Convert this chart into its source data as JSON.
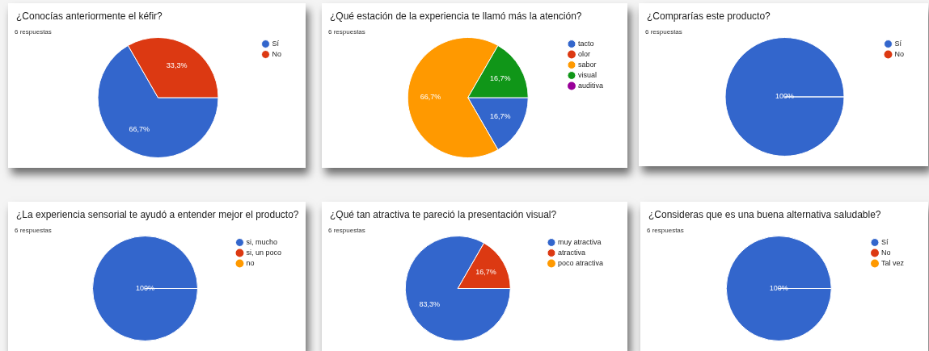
{
  "chart_data": [
    {
      "type": "pie",
      "title": "¿Conocías anteriormente el kéfir?",
      "subtitle": "6 respuestas",
      "categories": [
        "Sí",
        "No"
      ],
      "values": [
        66.7,
        33.3
      ],
      "colors": [
        "#3366cc",
        "#dc3912"
      ],
      "value_labels": [
        "66,7%",
        "33,3%"
      ],
      "legend": "right"
    },
    {
      "type": "pie",
      "title": "¿Qué estación de la experiencia te llamó más la atención?",
      "subtitle": "6 respuestas",
      "categories": [
        "tacto",
        "olor",
        "sabor",
        "visual",
        "auditiva"
      ],
      "values": [
        16.7,
        0,
        66.7,
        16.7,
        0
      ],
      "colors": [
        "#3366cc",
        "#dc3912",
        "#ff9900",
        "#109618",
        "#990099"
      ],
      "value_labels": [
        "16,7%",
        null,
        "66,7%",
        "16,7%",
        null
      ],
      "legend": "right"
    },
    {
      "type": "pie",
      "title": "¿Comprarías este producto?",
      "subtitle": "6 respuestas",
      "categories": [
        "Sí",
        "No"
      ],
      "values": [
        100,
        0
      ],
      "colors": [
        "#3366cc",
        "#dc3912"
      ],
      "value_labels": [
        "100%",
        null
      ],
      "legend": "right"
    },
    {
      "type": "pie",
      "title": "¿La experiencia sensorial te ayudó a entender mejor el producto?",
      "subtitle": "6 respuestas",
      "categories": [
        "si, mucho",
        "si, un poco",
        "no"
      ],
      "values": [
        100,
        0,
        0
      ],
      "colors": [
        "#3366cc",
        "#dc3912",
        "#ff9900"
      ],
      "value_labels": [
        "100%",
        null,
        null
      ],
      "legend": "right"
    },
    {
      "type": "pie",
      "title": "¿Qué tan atractiva te pareció la presentación visual?",
      "subtitle": "6 respuestas",
      "categories": [
        "muy atractiva",
        "atractiva",
        "poco atractiva"
      ],
      "values": [
        83.3,
        16.7,
        0
      ],
      "colors": [
        "#3366cc",
        "#dc3912",
        "#ff9900"
      ],
      "value_labels": [
        "83,3%",
        "16,7%",
        null
      ],
      "legend": "right"
    },
    {
      "type": "pie",
      "title": "¿Consideras que es una buena alternativa saludable?",
      "subtitle": "6 respuestas",
      "categories": [
        "Sí",
        "No",
        "Tal vez"
      ],
      "values": [
        100,
        0,
        0
      ],
      "colors": [
        "#3366cc",
        "#dc3912",
        "#ff9900"
      ],
      "value_labels": [
        "100%",
        null,
        null
      ],
      "legend": "right"
    }
  ]
}
